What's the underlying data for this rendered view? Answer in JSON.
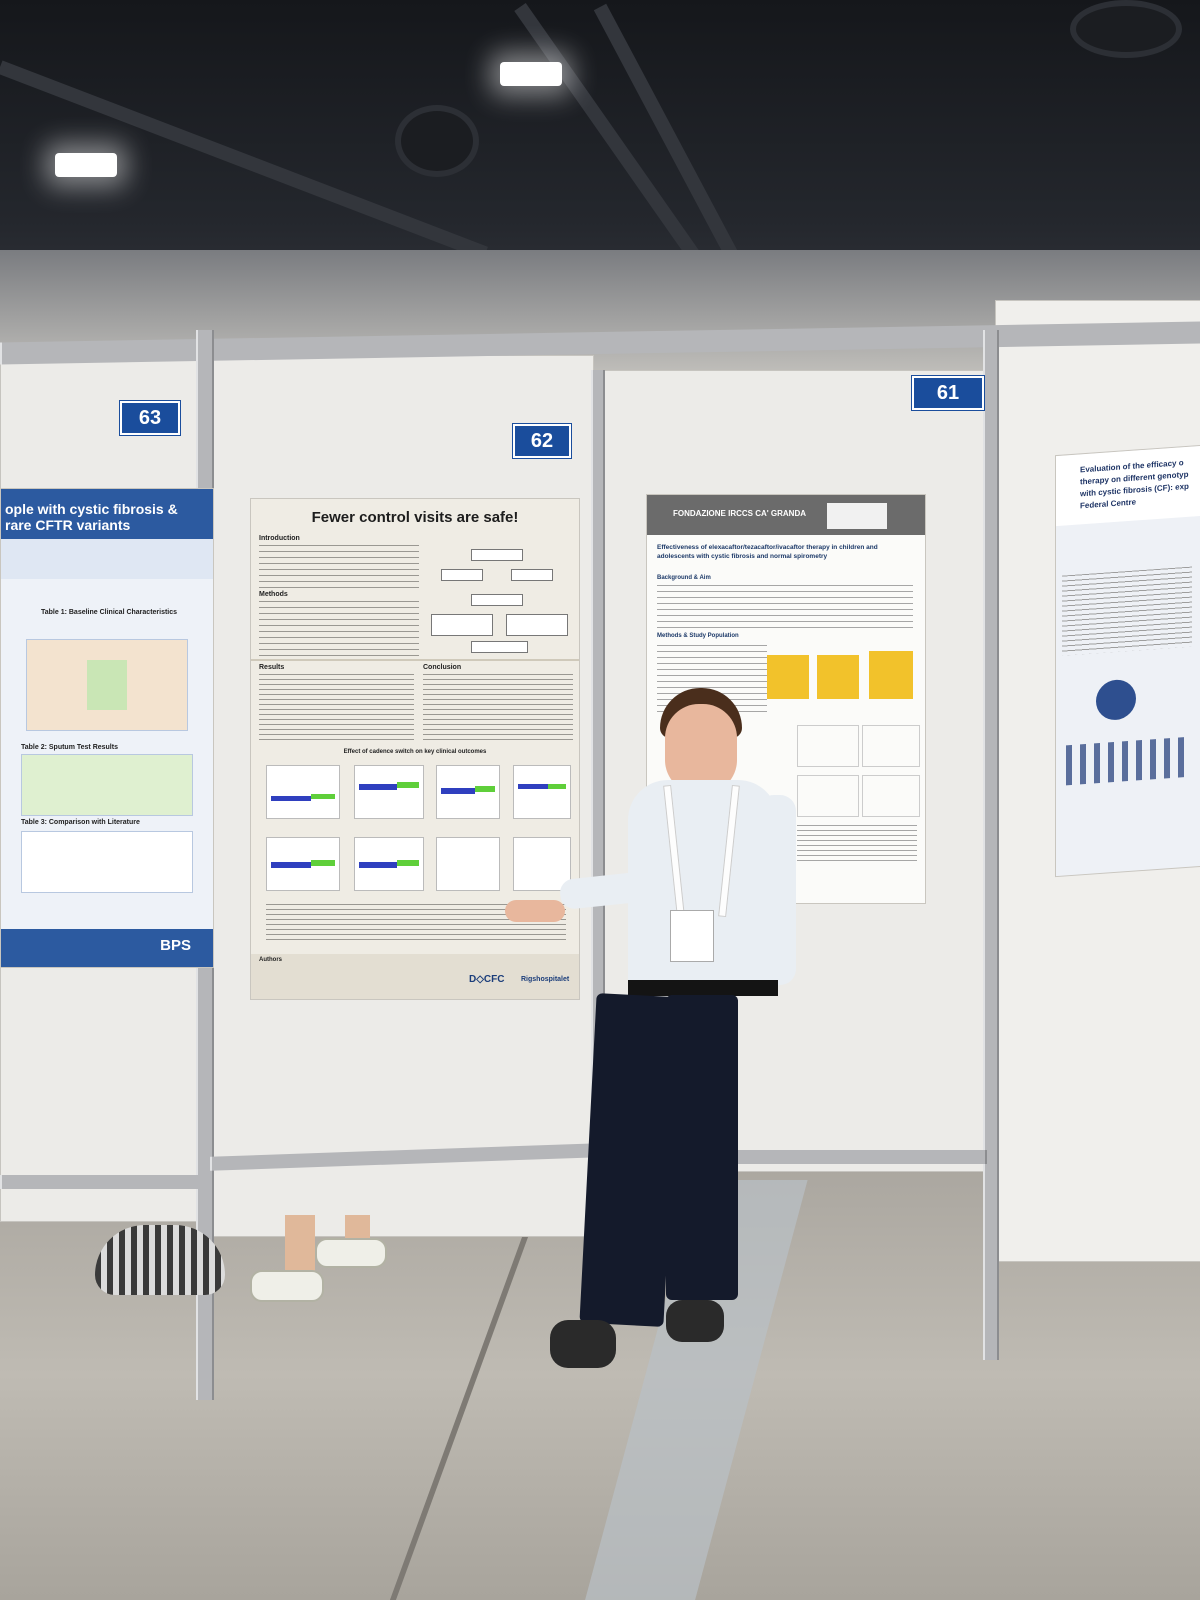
{
  "booths": {
    "left": "63",
    "center": "62",
    "right": "61"
  },
  "poster_center": {
    "title": "Fewer control visits are safe!",
    "sections": {
      "introduction": "Introduction",
      "methods": "Methods",
      "results": "Results",
      "conclusion": "Conclusion",
      "authors": "Authors"
    },
    "chart_caption": "Effect of cadence switch on key clinical outcomes",
    "logos": {
      "dcfc": "D◇CFC",
      "hospital": "Rigshospitalet"
    }
  },
  "poster_left": {
    "title": "ople with cystic fibrosis & rare CFTR variants",
    "table1": "Table 1: Baseline Clinical Characteristics",
    "table2": "Table 2: Sputum Test Results",
    "table3": "Table 3: Comparison with Literature",
    "logo": "BPS"
  },
  "poster_right": {
    "title": "Effectiveness of elexacaftor/tezacaftor/ivacaftor therapy in children and adolescents with cystic fibrosis and normal spirometry",
    "header": "FONDAZIONE IRCCS CA' GRANDA",
    "sections": {
      "background": "Background & Aim",
      "methods": "Methods & Study Population"
    }
  },
  "poster_far_right": {
    "title_line1": "Evaluation of the efficacy o",
    "title_line2": "therapy on different genotyp",
    "title_line3": "with cystic fibrosis (CF): exp",
    "title_line4": "Federal Centre"
  }
}
